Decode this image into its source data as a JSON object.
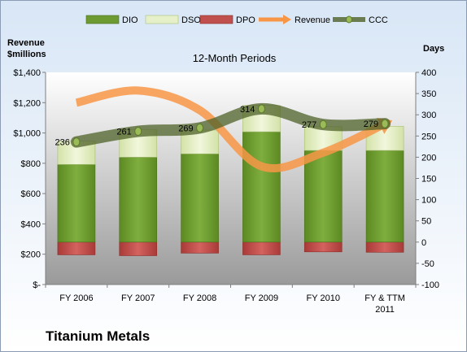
{
  "chart_data": {
    "type": "bar",
    "subtitle": "12-Month Periods",
    "company": "Titanium Metals",
    "y_left": {
      "title_lines": [
        "Revenue",
        "$millions"
      ],
      "range": [
        0,
        1400
      ],
      "ticks": [
        0,
        200,
        400,
        600,
        800,
        1000,
        1200,
        1400
      ],
      "tick_labels": [
        "$-",
        "$200",
        "$400",
        "$600",
        "$800",
        "$1,000",
        "$1,200",
        "$1,400"
      ]
    },
    "y_right": {
      "title": "Days",
      "range": [
        -100,
        400
      ],
      "ticks": [
        -100,
        -50,
        0,
        50,
        100,
        150,
        200,
        250,
        300,
        350,
        400
      ],
      "tick_labels": [
        "-100",
        "-50",
        "0",
        "50",
        "100",
        "150",
        "200",
        "250",
        "300",
        "350",
        "400"
      ]
    },
    "categories": [
      [
        "FY 2006"
      ],
      [
        "FY 2007"
      ],
      [
        "FY 2008"
      ],
      [
        "FY 2009"
      ],
      [
        "FY 2010"
      ],
      [
        "FY & TTM",
        "2011"
      ]
    ],
    "series": [
      {
        "name": "DIO",
        "axis": "right",
        "color": "#6e9a32",
        "values": [
          183,
          200,
          208,
          260,
          216,
          216
        ]
      },
      {
        "name": "DSO",
        "axis": "right",
        "color": "#e6f0c8",
        "values": [
          55,
          65,
          56,
          62,
          56,
          57
        ]
      },
      {
        "name": "DPO",
        "axis": "right",
        "color": "#c0504d",
        "values": [
          -30,
          -32,
          -26,
          -30,
          -23,
          -24
        ]
      },
      {
        "name": "Revenue",
        "axis": "left",
        "color": "#f79646",
        "values": [
          1200,
          1280,
          1150,
          780,
          870,
          1060
        ]
      },
      {
        "name": "CCC",
        "axis": "right",
        "color": "#4f6228",
        "values": [
          236,
          261,
          269,
          314,
          277,
          279
        ],
        "labels": [
          "236",
          "261",
          "269",
          "314",
          "277",
          "279"
        ]
      }
    ],
    "grid": false,
    "legend": "top"
  }
}
